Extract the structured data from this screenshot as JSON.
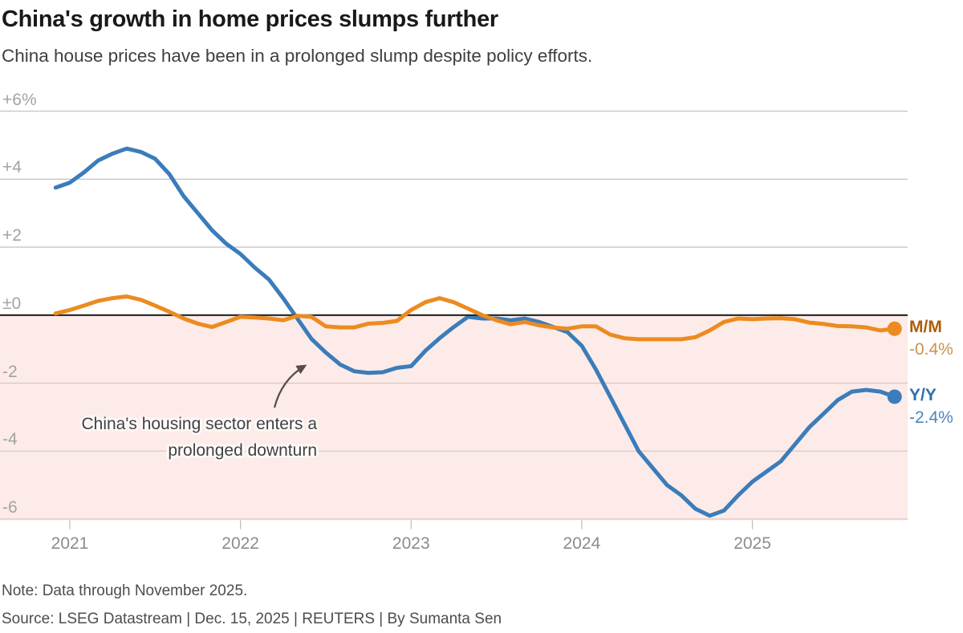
{
  "header": {
    "title": "China's growth in home prices slumps further",
    "subtitle": "China house prices have been in a prolonged slump despite policy efforts."
  },
  "annotation": {
    "line1": "China's housing sector enters a",
    "line2": "prolonged downturn"
  },
  "footer": {
    "note": "Note: Data through November 2025.",
    "source": "Source: LSEG Datastream | Dec. 15, 2025 | REUTERS | By Sumanta Sen"
  },
  "chart_data": {
    "type": "line",
    "title": "China's growth in home prices slumps further",
    "x_frequency": "monthly",
    "x_start": "2020-12",
    "x_end": "2025-11",
    "negative_region_color": "#fcebe8",
    "grid_on": true,
    "x_axis": {
      "ticks": [
        {
          "label": "2021",
          "month_index": 1
        },
        {
          "label": "2022",
          "month_index": 13
        },
        {
          "label": "2023",
          "month_index": 25
        },
        {
          "label": "2024",
          "month_index": 37
        },
        {
          "label": "2025",
          "month_index": 49
        }
      ]
    },
    "y_axis": {
      "unit": "%",
      "range": [
        -6.6,
        6.6
      ],
      "ticks": [
        {
          "label": "+6%",
          "value": 6
        },
        {
          "label": "+4",
          "value": 4
        },
        {
          "label": "+2",
          "value": 2
        },
        {
          "label": "±0",
          "value": 0
        },
        {
          "label": "-2",
          "value": -2
        },
        {
          "label": "-4",
          "value": -4
        },
        {
          "label": "-6",
          "value": -6
        }
      ]
    },
    "series": [
      {
        "name": "Y/Y",
        "end_label": "Y/Y",
        "end_value_label": "-2.4%",
        "color": "#3b7cba",
        "label_color": "#2d6fad",
        "value_color": "#4e86ba",
        "values": [
          3.75,
          3.9,
          4.2,
          4.55,
          4.75,
          4.9,
          4.8,
          4.6,
          4.15,
          3.5,
          3.0,
          2.5,
          2.1,
          1.8,
          1.4,
          1.05,
          0.5,
          -0.1,
          -0.7,
          -1.1,
          -1.45,
          -1.65,
          -1.7,
          -1.68,
          -1.55,
          -1.5,
          -1.05,
          -0.68,
          -0.35,
          -0.05,
          -0.1,
          -0.1,
          -0.15,
          -0.1,
          -0.2,
          -0.35,
          -0.5,
          -0.9,
          -1.6,
          -2.4,
          -3.2,
          -4.0,
          -4.5,
          -5.0,
          -5.3,
          -5.7,
          -5.9,
          -5.75,
          -5.3,
          -4.9,
          -4.6,
          -4.3,
          -3.8,
          -3.3,
          -2.9,
          -2.5,
          -2.25,
          -2.2,
          -2.25,
          -2.4
        ]
      },
      {
        "name": "M/M",
        "end_label": "M/M",
        "end_value_label": "-0.4%",
        "color": "#ec8b20",
        "label_color": "#ad5c06",
        "value_color": "#c99350",
        "values": [
          0.05,
          0.15,
          0.28,
          0.42,
          0.5,
          0.55,
          0.45,
          0.28,
          0.1,
          -0.1,
          -0.25,
          -0.35,
          -0.2,
          -0.05,
          -0.07,
          -0.1,
          -0.15,
          -0.02,
          -0.05,
          -0.33,
          -0.36,
          -0.36,
          -0.25,
          -0.23,
          -0.17,
          0.15,
          0.38,
          0.5,
          0.38,
          0.19,
          0.0,
          -0.15,
          -0.27,
          -0.2,
          -0.3,
          -0.36,
          -0.4,
          -0.33,
          -0.33,
          -0.57,
          -0.68,
          -0.71,
          -0.71,
          -0.71,
          -0.71,
          -0.65,
          -0.45,
          -0.2,
          -0.1,
          -0.12,
          -0.1,
          -0.09,
          -0.12,
          -0.22,
          -0.26,
          -0.32,
          -0.33,
          -0.36,
          -0.45,
          -0.4
        ]
      }
    ]
  }
}
